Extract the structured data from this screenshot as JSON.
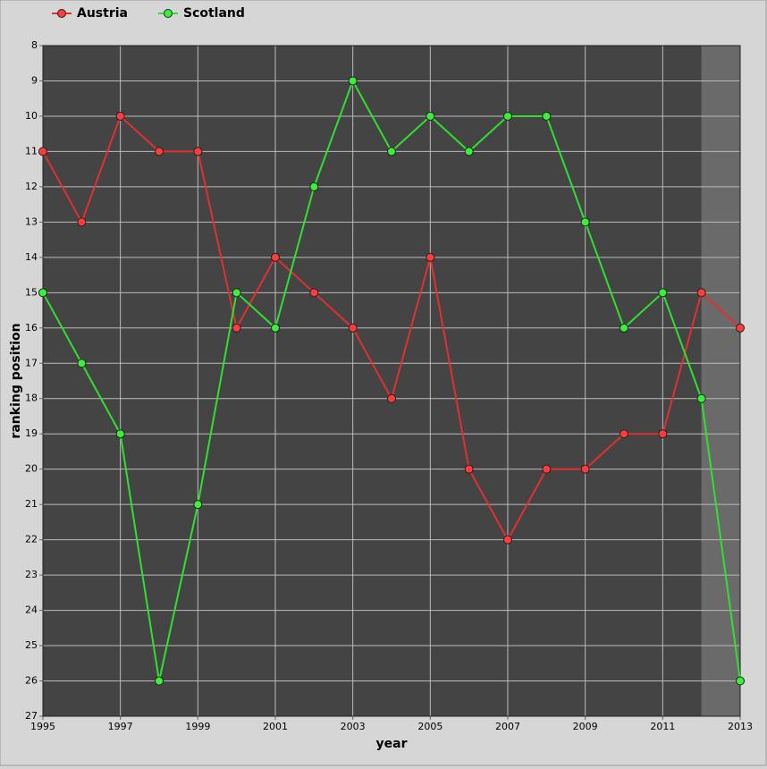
{
  "chart_data": {
    "type": "line",
    "x_label": "year",
    "y_label": "ranking position",
    "x": [
      1995,
      1996,
      1997,
      1998,
      1999,
      2000,
      2001,
      2002,
      2003,
      2004,
      2005,
      2006,
      2007,
      2008,
      2009,
      2010,
      2011,
      2012,
      2013
    ],
    "series": [
      {
        "name": "Austria",
        "color": "#ff3b3b",
        "line_color": "#e03030",
        "values": [
          11,
          13,
          10,
          11,
          11,
          16,
          14,
          15,
          16,
          18,
          14,
          20,
          22,
          20,
          20,
          19,
          19,
          15,
          16
        ]
      },
      {
        "name": "Scotland",
        "color": "#3bf03b",
        "line_color": "#30e030",
        "values": [
          15,
          17,
          19,
          26,
          21,
          15,
          16,
          12,
          9,
          11,
          10,
          11,
          10,
          10,
          13,
          16,
          15,
          18,
          26
        ]
      }
    ],
    "xlim": [
      1995,
      2013
    ],
    "xticks": [
      1995,
      1997,
      1999,
      2001,
      2003,
      2005,
      2007,
      2009,
      2011,
      2013
    ],
    "ylim": [
      27,
      8
    ],
    "yticks": [
      8,
      9,
      10,
      11,
      12,
      13,
      14,
      15,
      16,
      17,
      18,
      19,
      20,
      21,
      22,
      23,
      24,
      25,
      26,
      27
    ],
    "highlight_range": [
      2012,
      2013
    ],
    "grid": true,
    "legend": "top-left"
  }
}
